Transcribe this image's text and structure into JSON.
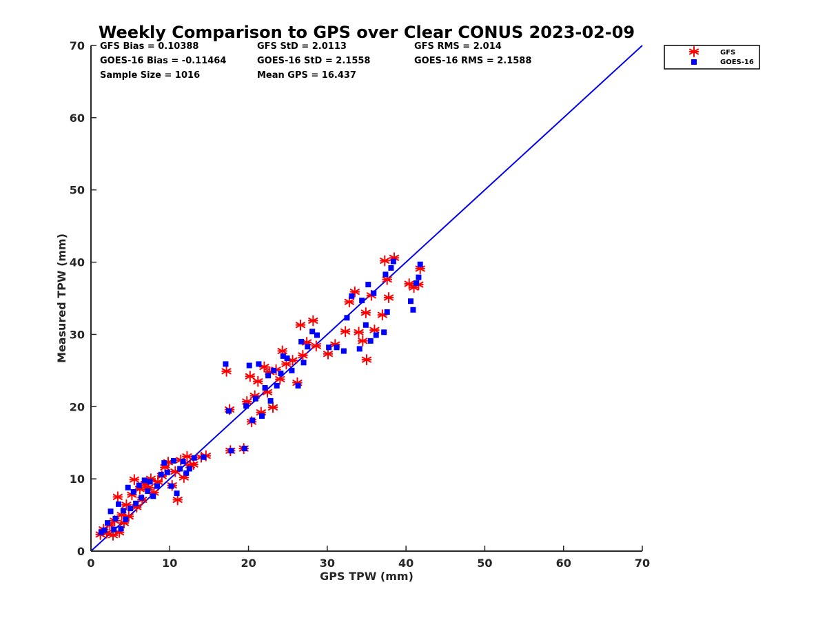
{
  "chart_data": {
    "type": "scatter",
    "title": "Weekly Comparison to GPS over Clear CONUS 2023-02-09",
    "xlabel": "GPS TPW (mm)",
    "ylabel": "Measured TPW (mm)",
    "xlim": [
      0,
      70
    ],
    "ylim": [
      0,
      70
    ],
    "xticks": [
      "0",
      "10",
      "20",
      "30",
      "40",
      "50",
      "60",
      "70"
    ],
    "yticks": [
      "0",
      "10",
      "20",
      "30",
      "40",
      "50",
      "60",
      "70"
    ],
    "grid": false,
    "legend_position": "outside top-right",
    "stats": [
      "GFS Bias = 0.10388",
      "GFS StD = 2.0113",
      "GFS RMS = 2.014",
      "GOES-16 Bias = -0.11464",
      "GOES-16 StD = 2.1558",
      "GOES-16 RMS = 2.1588",
      "Sample Size = 1016",
      "Mean GPS = 16.437"
    ],
    "reference_line": {
      "name": "1:1",
      "color": "#0000ee",
      "x": [
        0,
        70
      ],
      "y": [
        0,
        70
      ]
    },
    "series": [
      {
        "name": "GFS",
        "marker": "asterisk",
        "color": "#ff0000",
        "points": [
          [
            1.2,
            2.3
          ],
          [
            1.6,
            3.0
          ],
          [
            2.0,
            2.5
          ],
          [
            2.4,
            3.6
          ],
          [
            2.8,
            2.2
          ],
          [
            3.0,
            4.2
          ],
          [
            3.4,
            7.5
          ],
          [
            3.6,
            2.6
          ],
          [
            3.9,
            5.0
          ],
          [
            4.2,
            3.9
          ],
          [
            4.5,
            6.4
          ],
          [
            4.8,
            4.8
          ],
          [
            5.2,
            7.8
          ],
          [
            5.5,
            9.9
          ],
          [
            5.8,
            6.1
          ],
          [
            6.2,
            8.6
          ],
          [
            6.5,
            7.1
          ],
          [
            6.9,
            9.3
          ],
          [
            7.3,
            8.8
          ],
          [
            7.6,
            10.0
          ],
          [
            8.0,
            8.1
          ],
          [
            8.5,
            9.6
          ],
          [
            9.0,
            10.4
          ],
          [
            9.4,
            11.6
          ],
          [
            9.8,
            12.3
          ],
          [
            10.3,
            9.1
          ],
          [
            10.7,
            11.0
          ],
          [
            11.0,
            7.1
          ],
          [
            11.4,
            12.6
          ],
          [
            11.8,
            10.2
          ],
          [
            12.2,
            13.1
          ],
          [
            12.6,
            11.9
          ],
          [
            13.0,
            12.0
          ],
          [
            14.0,
            13.0
          ],
          [
            14.6,
            13.2
          ],
          [
            17.2,
            24.9
          ],
          [
            17.6,
            19.6
          ],
          [
            17.7,
            13.9
          ],
          [
            19.4,
            14.2
          ],
          [
            19.8,
            20.7
          ],
          [
            20.2,
            24.2
          ],
          [
            20.4,
            17.9
          ],
          [
            20.8,
            21.5
          ],
          [
            21.2,
            23.5
          ],
          [
            21.6,
            19.2
          ],
          [
            22.0,
            25.5
          ],
          [
            22.4,
            22.0
          ],
          [
            22.7,
            24.8
          ],
          [
            23.1,
            19.9
          ],
          [
            23.5,
            25.1
          ],
          [
            24.0,
            23.8
          ],
          [
            24.3,
            27.7
          ],
          [
            24.8,
            25.9
          ],
          [
            25.6,
            26.4
          ],
          [
            26.2,
            23.3
          ],
          [
            26.6,
            31.3
          ],
          [
            26.9,
            27.1
          ],
          [
            27.4,
            28.9
          ],
          [
            28.2,
            31.9
          ],
          [
            28.6,
            28.4
          ],
          [
            30.1,
            27.3
          ],
          [
            31.0,
            28.6
          ],
          [
            32.3,
            30.4
          ],
          [
            32.8,
            34.5
          ],
          [
            33.5,
            35.9
          ],
          [
            34.0,
            30.3
          ],
          [
            34.5,
            29.1
          ],
          [
            34.9,
            33.0
          ],
          [
            35.0,
            26.5
          ],
          [
            35.6,
            35.4
          ],
          [
            36.0,
            30.6
          ],
          [
            37.0,
            32.7
          ],
          [
            37.3,
            40.2
          ],
          [
            37.6,
            37.6
          ],
          [
            37.8,
            35.1
          ],
          [
            38.5,
            40.6
          ],
          [
            40.4,
            37.0
          ],
          [
            41.0,
            36.5
          ],
          [
            41.6,
            36.9
          ],
          [
            41.8,
            39.1
          ]
        ]
      },
      {
        "name": "GOES-16",
        "marker": "square",
        "color": "#0000ff",
        "points": [
          [
            1.3,
            2.6
          ],
          [
            1.7,
            2.9
          ],
          [
            2.1,
            3.9
          ],
          [
            2.5,
            5.5
          ],
          [
            2.9,
            3.0
          ],
          [
            3.1,
            4.5
          ],
          [
            3.5,
            6.5
          ],
          [
            3.8,
            3.1
          ],
          [
            4.1,
            5.6
          ],
          [
            4.4,
            4.4
          ],
          [
            4.7,
            8.8
          ],
          [
            5.0,
            5.9
          ],
          [
            5.4,
            8.2
          ],
          [
            5.7,
            6.6
          ],
          [
            6.1,
            9.1
          ],
          [
            6.4,
            7.4
          ],
          [
            6.8,
            9.8
          ],
          [
            7.2,
            8.3
          ],
          [
            7.5,
            9.6
          ],
          [
            7.9,
            7.6
          ],
          [
            8.4,
            9.0
          ],
          [
            8.9,
            10.6
          ],
          [
            9.3,
            12.2
          ],
          [
            9.7,
            10.9
          ],
          [
            10.2,
            9.0
          ],
          [
            10.5,
            12.5
          ],
          [
            10.9,
            8.0
          ],
          [
            11.3,
            11.4
          ],
          [
            11.7,
            12.4
          ],
          [
            12.1,
            10.8
          ],
          [
            12.5,
            11.4
          ],
          [
            13.1,
            12.9
          ],
          [
            14.3,
            13.0
          ],
          [
            17.1,
            25.9
          ],
          [
            17.5,
            19.4
          ],
          [
            17.8,
            13.9
          ],
          [
            19.5,
            14.2
          ],
          [
            19.7,
            20.1
          ],
          [
            20.1,
            25.7
          ],
          [
            20.5,
            18.1
          ],
          [
            20.9,
            21.1
          ],
          [
            21.3,
            25.9
          ],
          [
            21.7,
            18.7
          ],
          [
            22.1,
            22.6
          ],
          [
            22.5,
            24.3
          ],
          [
            22.8,
            20.8
          ],
          [
            23.2,
            25.0
          ],
          [
            23.6,
            22.9
          ],
          [
            24.1,
            24.6
          ],
          [
            24.4,
            27.0
          ],
          [
            24.9,
            26.7
          ],
          [
            25.5,
            25.0
          ],
          [
            26.3,
            22.9
          ],
          [
            26.7,
            29.0
          ],
          [
            27.0,
            26.1
          ],
          [
            27.5,
            28.3
          ],
          [
            28.1,
            30.4
          ],
          [
            28.7,
            29.9
          ],
          [
            30.2,
            28.2
          ],
          [
            31.2,
            28.2
          ],
          [
            32.1,
            27.7
          ],
          [
            32.5,
            32.3
          ],
          [
            33.1,
            35.3
          ],
          [
            34.1,
            28.0
          ],
          [
            34.4,
            34.7
          ],
          [
            34.9,
            31.3
          ],
          [
            35.2,
            36.9
          ],
          [
            35.5,
            29.1
          ],
          [
            35.9,
            35.7
          ],
          [
            36.2,
            29.9
          ],
          [
            37.2,
            30.3
          ],
          [
            37.4,
            38.3
          ],
          [
            37.6,
            33.1
          ],
          [
            38.1,
            39.2
          ],
          [
            38.4,
            40.1
          ],
          [
            40.6,
            34.6
          ],
          [
            40.9,
            33.4
          ],
          [
            41.3,
            37.1
          ],
          [
            41.6,
            37.9
          ],
          [
            41.8,
            39.7
          ]
        ]
      }
    ]
  }
}
